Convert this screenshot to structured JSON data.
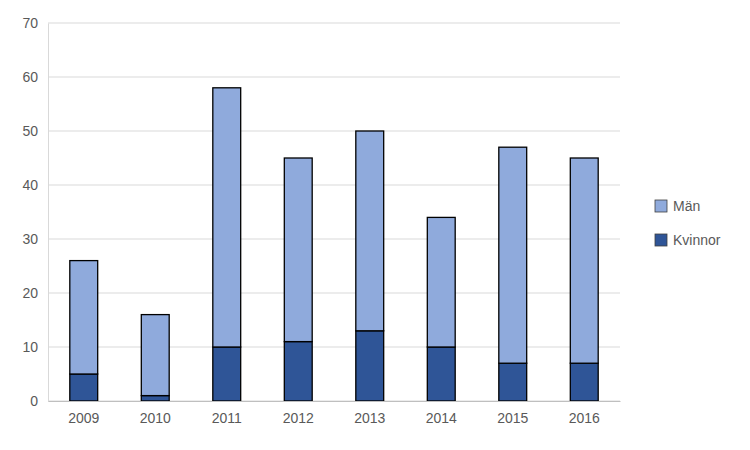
{
  "chart_data": {
    "type": "bar",
    "stacked": true,
    "categories": [
      "2009",
      "2010",
      "2011",
      "2012",
      "2013",
      "2014",
      "2015",
      "2016"
    ],
    "series": [
      {
        "name": "Kvinnor",
        "color": "#2f5597",
        "values": [
          5,
          1,
          10,
          11,
          13,
          10,
          7,
          7
        ]
      },
      {
        "name": "Män",
        "color": "#8faadc",
        "values": [
          21,
          15,
          48,
          34,
          37,
          24,
          40,
          38
        ]
      }
    ],
    "ylim": [
      0,
      70
    ],
    "yticks": [
      0,
      10,
      20,
      30,
      40,
      50,
      60,
      70
    ],
    "grid": true,
    "legend": "right"
  }
}
